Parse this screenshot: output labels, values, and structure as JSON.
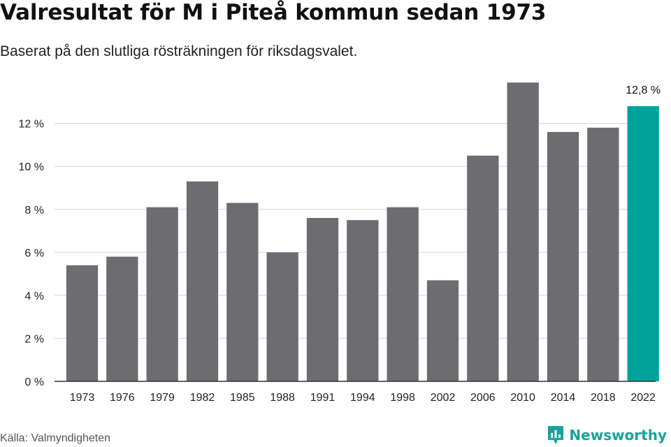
{
  "title": "Valresultat för M i Piteå kommun sedan 1973",
  "subtitle": "Baserat på den slutliga rösträkningen för riksdagsvalet.",
  "source": "Källa: Valmyndigheten",
  "brand": {
    "name": "Newsworthy",
    "icon": "newsworthy-logo-icon"
  },
  "colors": {
    "bar": "#6d6c71",
    "highlight": "#00a399",
    "grid": "#dcdcdc",
    "axis": "#333333"
  },
  "chart_data": {
    "type": "bar",
    "title": "Valresultat för M i Piteå kommun sedan 1973",
    "subtitle": "Baserat på den slutliga rösträkningen för riksdagsvalet.",
    "categories": [
      "1973",
      "1976",
      "1979",
      "1982",
      "1985",
      "1988",
      "1991",
      "1994",
      "1998",
      "2002",
      "2006",
      "2010",
      "2014",
      "2018",
      "2022"
    ],
    "values": [
      5.4,
      5.8,
      8.1,
      9.3,
      8.3,
      6.0,
      7.6,
      7.5,
      8.1,
      4.7,
      10.5,
      13.9,
      11.6,
      11.8,
      12.8
    ],
    "highlight_index": 14,
    "data_labels": {
      "14": "12,8 %"
    },
    "yticks": [
      0,
      2,
      4,
      6,
      8,
      10,
      12
    ],
    "ytick_labels": [
      "0 %",
      "2 %",
      "4 %",
      "6 %",
      "8 %",
      "10 %",
      "12 %"
    ],
    "ylim": [
      0,
      14.0
    ],
    "xlabel": "",
    "ylabel": "",
    "grid": true,
    "legend": "none"
  }
}
